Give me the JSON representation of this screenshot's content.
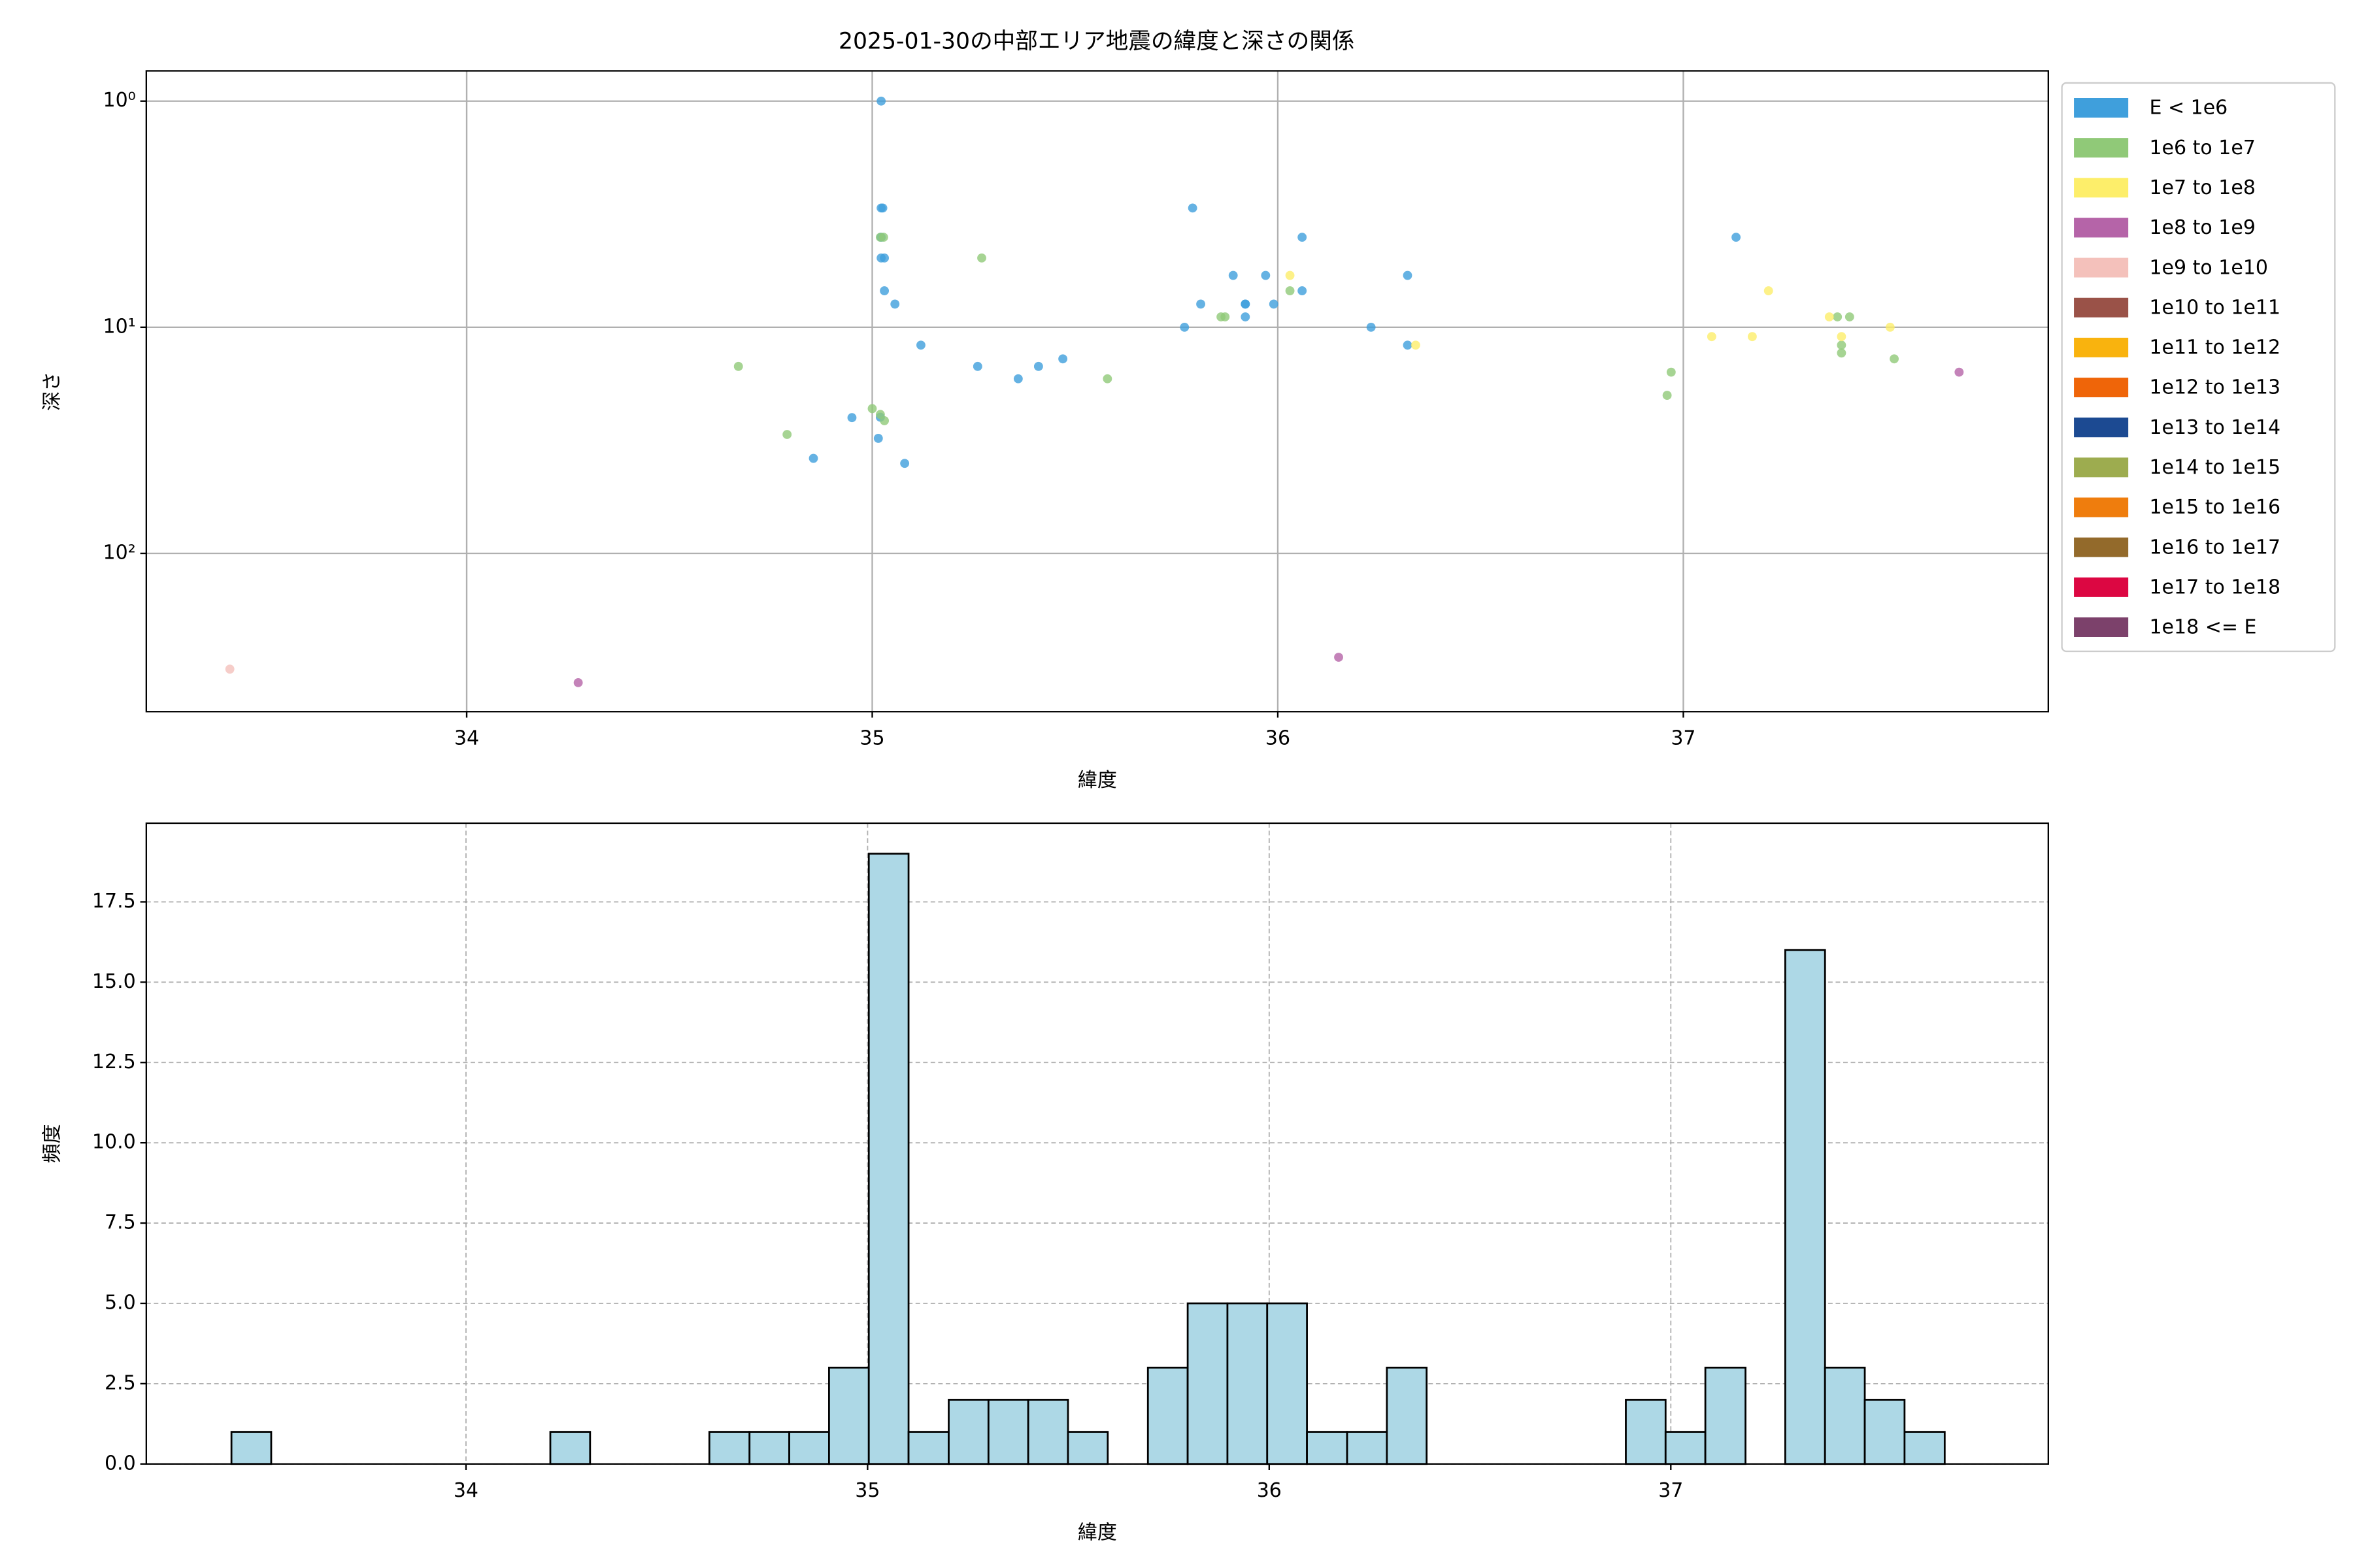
{
  "chart_data": [
    {
      "type": "scatter",
      "title": "2025-01-30の中部エリア地震の緯度と深さの関係",
      "xlabel": "緯度",
      "ylabel": "深さ",
      "xlim": [
        33.21,
        37.9
      ],
      "xticks": [
        34,
        35,
        36,
        37
      ],
      "ylim": [
        501,
        0.735
      ],
      "yscale": "log",
      "y_inverted": true,
      "yticks": [
        {
          "value": 1,
          "label": "10⁰"
        },
        {
          "value": 10,
          "label": "10¹"
        },
        {
          "value": 100,
          "label": "10²"
        }
      ],
      "grid": true,
      "legend": "outside right",
      "series": [
        {
          "name": "E < 1e6",
          "color": "#3f9fdc",
          "x": [
            35.022,
            35.022,
            35.026,
            35.022,
            35.03,
            35.03,
            35.056,
            35.12,
            34.95,
            35.02,
            35.015,
            34.855,
            35.08,
            35.26,
            35.36,
            35.41,
            35.47,
            35.79,
            35.81,
            35.77,
            35.89,
            35.92,
            35.92,
            35.92,
            35.97,
            35.99,
            36.06,
            36.06,
            36.23,
            36.32,
            36.32,
            37.13,
            35.022
          ],
          "values": [
            1.0,
            2.97,
            2.97,
            4.94,
            4.94,
            6.9,
            7.9,
            12.0,
            25.1,
            25.0,
            31.0,
            38.0,
            40.0,
            14.9,
            16.9,
            14.9,
            13.8,
            2.97,
            7.9,
            10.0,
            5.9,
            7.9,
            7.9,
            9.0,
            5.9,
            7.9,
            4.0,
            6.9,
            10.0,
            5.9,
            12.0,
            4.0,
            4.0
          ]
        },
        {
          "name": "1e6 to 1e7",
          "color": "#90c978",
          "x": [
            35.02,
            35.028,
            35.27,
            34.67,
            34.79,
            35.0,
            35.02,
            35.03,
            35.58,
            35.86,
            35.87,
            36.03,
            36.97,
            36.96,
            37.38,
            37.41,
            37.39,
            37.39,
            37.52
          ],
          "values": [
            4.0,
            4.0,
            4.94,
            14.9,
            29.8,
            22.9,
            24.3,
            25.9,
            16.9,
            9.0,
            9.0,
            6.9,
            15.8,
            20.0,
            9.0,
            9.0,
            12.0,
            13.0,
            13.8
          ]
        },
        {
          "name": "1e7 to 1e8",
          "color": "#fdee6a",
          "x": [
            36.03,
            36.34,
            37.07,
            37.17,
            37.21,
            37.36,
            37.39,
            37.51
          ],
          "values": [
            5.9,
            12.0,
            11.0,
            11.0,
            6.9,
            9.0,
            11.0,
            10.0
          ]
        },
        {
          "name": "1e8 to 1e9",
          "color": "#b564a8",
          "x": [
            37.68,
            36.15,
            34.275
          ],
          "values": [
            15.8,
            288,
            373
          ]
        },
        {
          "name": "1e9 to 1e10",
          "color": "#f4c1bb",
          "x": [
            33.416
          ],
          "values": [
            325
          ]
        },
        {
          "name": "1e10 to 1e11",
          "color": "#9a5248",
          "x": [],
          "values": []
        },
        {
          "name": "1e11 to 1e12",
          "color": "#f9b30e",
          "x": [],
          "values": []
        },
        {
          "name": "1e12 to 1e13",
          "color": "#ef6509",
          "x": [],
          "values": []
        },
        {
          "name": "1e13 to 1e14",
          "color": "#1c4a92",
          "x": [],
          "values": []
        },
        {
          "name": "1e14 to 1e15",
          "color": "#9dac4f",
          "x": [],
          "values": []
        },
        {
          "name": "1e15 to 1e16",
          "color": "#ef7d0d",
          "x": [],
          "values": []
        },
        {
          "name": "1e16 to 1e17",
          "color": "#936a2b",
          "x": [],
          "values": []
        },
        {
          "name": "1e17 to 1e18",
          "color": "#dc0742",
          "x": [],
          "values": []
        },
        {
          "name": "1e18 <= E",
          "color": "#7c416b",
          "x": [],
          "values": []
        }
      ]
    },
    {
      "type": "histogram",
      "xlabel": "緯度",
      "ylabel": "頻度",
      "xlim": [
        33.204,
        37.94
      ],
      "xticks": [
        34,
        35,
        36,
        37
      ],
      "ylim": [
        0,
        19.95
      ],
      "yticks": [
        {
          "value": 0,
          "label": "0.0"
        },
        {
          "value": 2.5,
          "label": "2.5"
        },
        {
          "value": 5,
          "label": "5.0"
        },
        {
          "value": 7.5,
          "label": "7.5"
        },
        {
          "value": 10,
          "label": "10.0"
        },
        {
          "value": 12.5,
          "label": "12.5"
        },
        {
          "value": 15,
          "label": "15.0"
        },
        {
          "value": 17.5,
          "label": "17.5"
        }
      ],
      "grid": "dashed",
      "color": "#add8e6",
      "edgecolor": "#000000",
      "bins": [
        33.416,
        33.515,
        33.614,
        33.714,
        33.813,
        33.912,
        34.011,
        34.11,
        34.21,
        34.309,
        34.408,
        34.507,
        34.606,
        34.706,
        34.805,
        34.904,
        35.003,
        35.102,
        35.202,
        35.301,
        35.4,
        35.499,
        35.598,
        35.698,
        35.797,
        35.896,
        35.995,
        36.094,
        36.194,
        36.293,
        36.392,
        36.491,
        36.59,
        36.69,
        36.789,
        36.888,
        36.987,
        37.086,
        37.186,
        37.285,
        37.384,
        37.483,
        37.582,
        37.682
      ],
      "values": [
        1,
        0,
        0,
        0,
        0,
        0,
        0,
        0,
        1,
        0,
        0,
        0,
        1,
        1,
        1,
        3,
        19,
        1,
        2,
        2,
        2,
        1,
        0,
        3,
        5,
        5,
        5,
        1,
        1,
        3,
        0,
        0,
        0,
        0,
        0,
        2,
        1,
        3,
        0,
        16,
        3,
        2,
        1
      ]
    }
  ]
}
